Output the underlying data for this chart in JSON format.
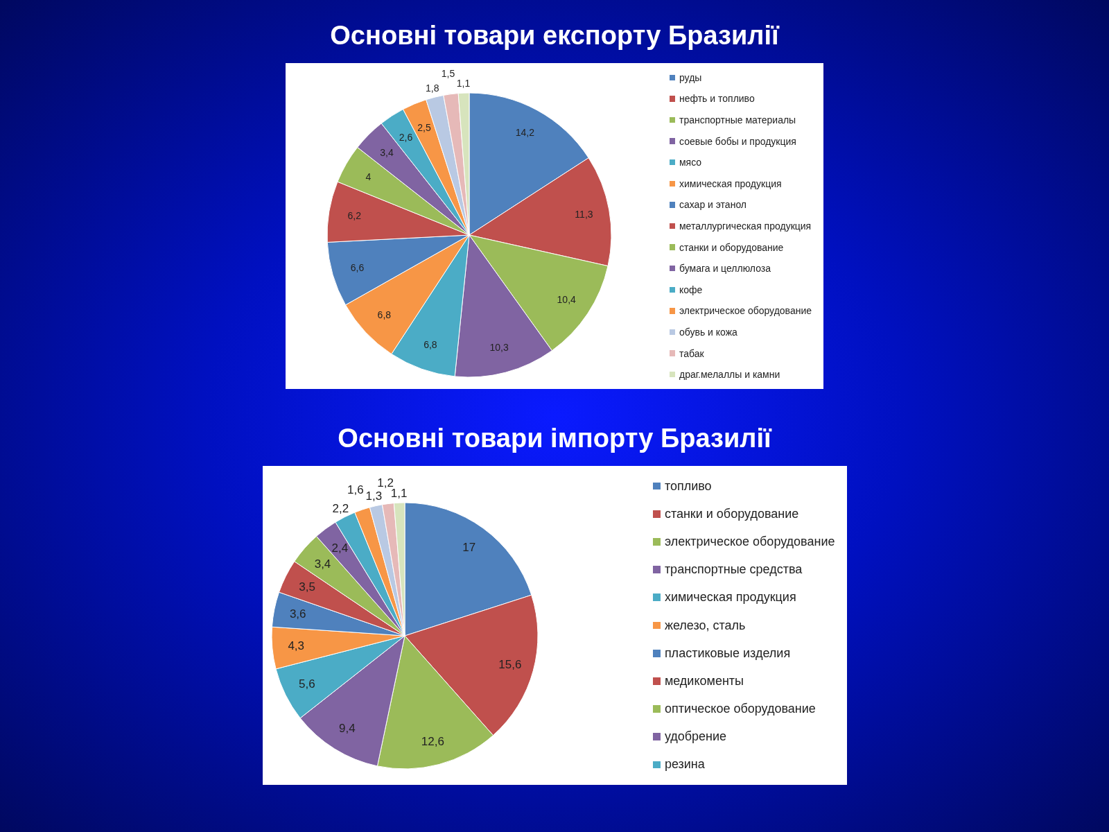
{
  "chart_data": [
    {
      "type": "pie",
      "title": "Основні товари експорту Бразилії",
      "categories": [
        "руды",
        "нефть и топливо",
        "транспортные материалы",
        "соевые бобы и продукция",
        "мясо",
        "химическая продукция",
        "сахар и этанол",
        "металлургическая продукция",
        "станки и оборудование",
        "бумага и целлюлоза",
        "кофе",
        "электрическое оборудование",
        "обувь и кожа",
        "табак",
        "драг.мелаллы и камни"
      ],
      "values": [
        14.2,
        11.3,
        10.4,
        10.3,
        6.8,
        6.8,
        6.6,
        6.2,
        4,
        3.4,
        2.6,
        2.5,
        1.8,
        1.5,
        1.1
      ],
      "value_labels": [
        "14,2",
        "11,3",
        "10,4",
        "10,3",
        "6,8",
        "6,8",
        "6,6",
        "6,2",
        "4",
        "3,4",
        "2,6",
        "2,5",
        "1,8",
        "1,5",
        "1,1"
      ],
      "colors": [
        "#4f81bd",
        "#c0504d",
        "#9bbb59",
        "#8064a2",
        "#4bacc6",
        "#f79646",
        "#4f81bd",
        "#c0504d",
        "#9bbb59",
        "#8064a2",
        "#4bacc6",
        "#f79646",
        "#b9c9e3",
        "#e6b9b8",
        "#d7e4bd"
      ],
      "legend": "right"
    },
    {
      "type": "pie",
      "title": "Основні товари імпорту Бразилії",
      "categories": [
        "топливо",
        "станки и оборудование",
        "электрическое оборудование",
        "транспортные средства",
        "химическая продукция",
        "железо, сталь",
        "пластиковые изделия",
        "медикоменты",
        "оптическое оборудование",
        "удобрение",
        "резина",
        null,
        null,
        null,
        null
      ],
      "values": [
        17,
        15.6,
        12.6,
        9.4,
        5.6,
        4.3,
        3.6,
        3.5,
        3.4,
        2.4,
        2.2,
        1.6,
        1.3,
        1.2,
        1.1
      ],
      "value_labels": [
        "17",
        "15,6",
        "12,6",
        "9,4",
        "5,6",
        "4,3",
        "3,6",
        "3,5",
        "3,4",
        "2,4",
        "2,2",
        "1,6",
        "1,3",
        "1,2",
        "1,1"
      ],
      "colors": [
        "#4f81bd",
        "#c0504d",
        "#9bbb59",
        "#8064a2",
        "#4bacc6",
        "#f79646",
        "#4f81bd",
        "#c0504d",
        "#9bbb59",
        "#8064a2",
        "#4bacc6",
        "#f79646",
        "#b9c9e3",
        "#e6b9b8",
        "#d7e4bd"
      ],
      "legend": "right"
    }
  ]
}
